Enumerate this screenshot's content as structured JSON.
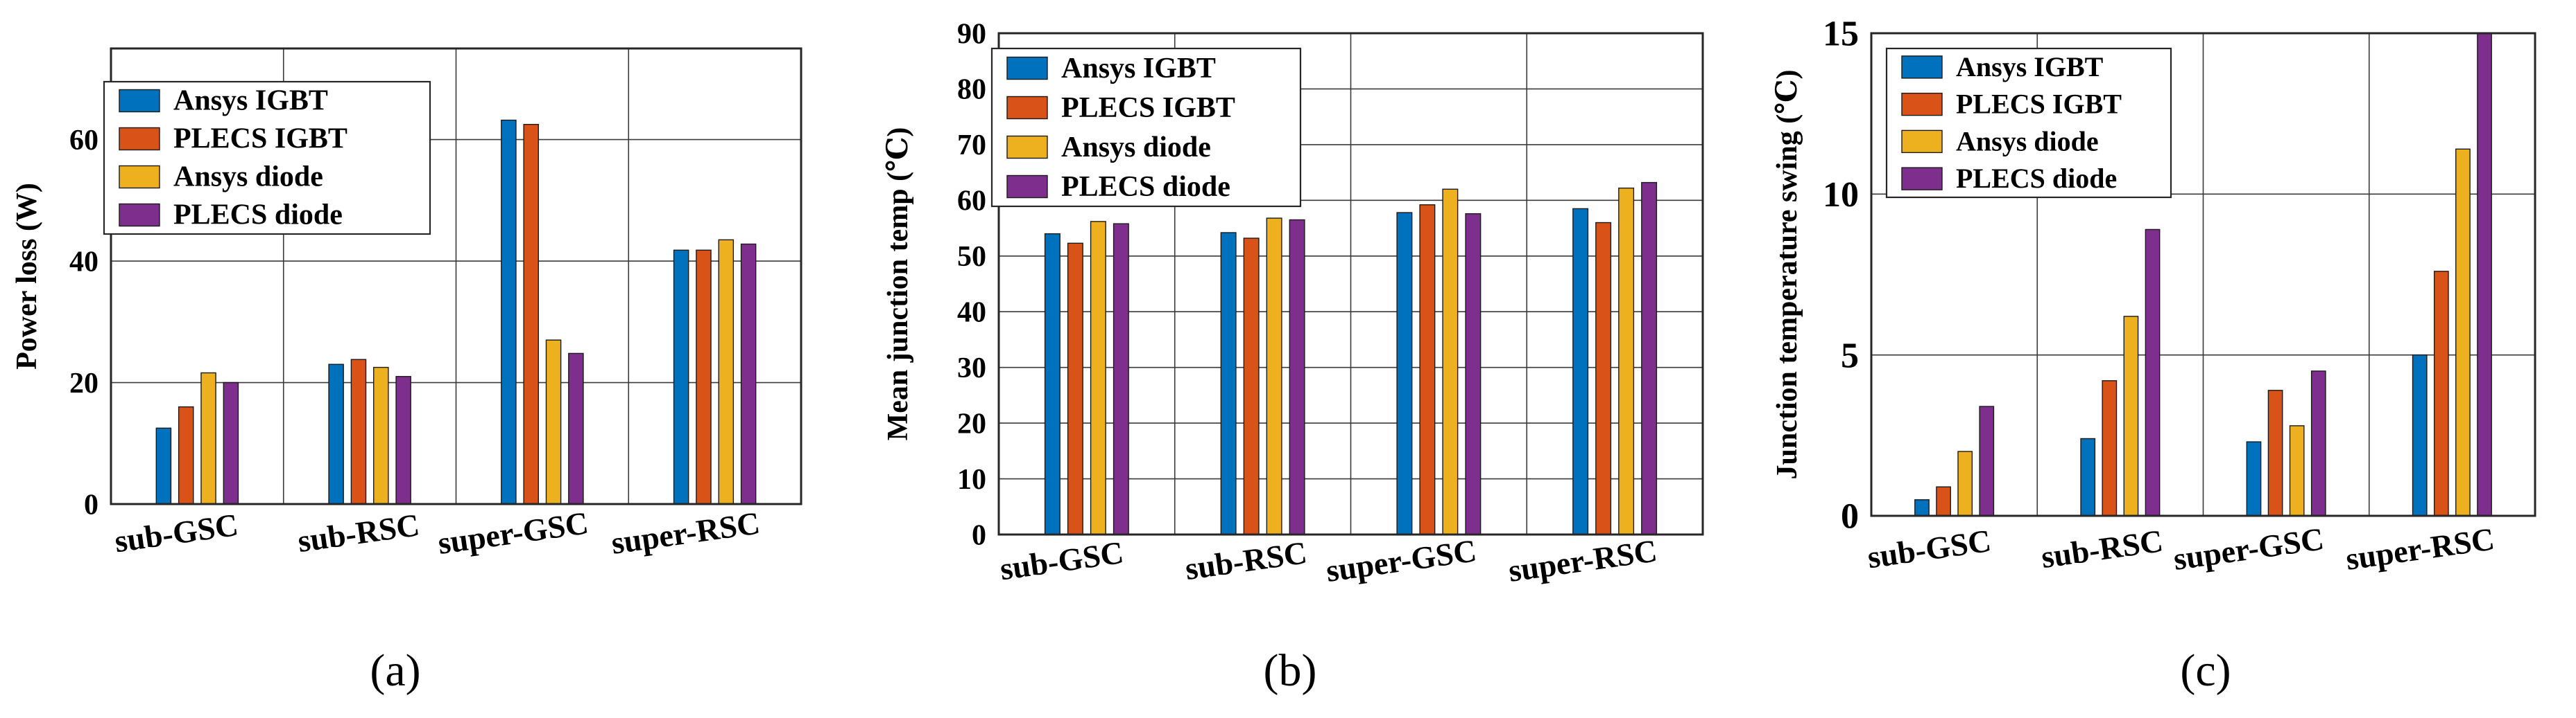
{
  "colors": {
    "series": [
      "#0072BD",
      "#D95319",
      "#EDB120",
      "#7E2F8E"
    ]
  },
  "chart_data": [
    {
      "type": "bar",
      "panel_label": "(a)",
      "title": "",
      "xlabel": "",
      "ylabel": "Power loss (W)",
      "ylim": [
        0,
        75
      ],
      "yticks": [
        0,
        20,
        40,
        60
      ],
      "grid": true,
      "legend_position": "top-left",
      "categories": [
        "sub-GSC",
        "sub-RSC",
        "super-GSC",
        "super-RSC"
      ],
      "series": [
        {
          "name": "Ansys IGBT",
          "values": [
            12.5,
            23,
            63.2,
            41.8
          ]
        },
        {
          "name": "PLECS IGBT",
          "values": [
            16,
            23.8,
            62.5,
            41.8
          ]
        },
        {
          "name": "Ansys diode",
          "values": [
            21.6,
            22.5,
            27,
            43.5
          ]
        },
        {
          "name": "PLECS diode",
          "values": [
            20,
            21,
            24.8,
            42.8
          ]
        }
      ]
    },
    {
      "type": "bar",
      "panel_label": "(b)",
      "title": "",
      "xlabel": "",
      "ylabel": "Mean junction temp (℃)",
      "ylim": [
        0,
        90
      ],
      "yticks": [
        0,
        10,
        20,
        30,
        40,
        50,
        60,
        70,
        80,
        90
      ],
      "grid": true,
      "legend_position": "top-left",
      "categories": [
        "sub-GSC",
        "sub-RSC",
        "super-GSC",
        "super-RSC"
      ],
      "series": [
        {
          "name": "Ansys IGBT",
          "values": [
            54,
            54.2,
            57.8,
            58.5
          ]
        },
        {
          "name": "PLECS IGBT",
          "values": [
            52.3,
            53.2,
            59.2,
            56
          ]
        },
        {
          "name": "Ansys diode",
          "values": [
            56.2,
            56.8,
            62,
            62.2
          ]
        },
        {
          "name": "PLECS diode",
          "values": [
            55.8,
            56.5,
            57.6,
            63.2
          ]
        }
      ]
    },
    {
      "type": "bar",
      "panel_label": "(c)",
      "title": "",
      "xlabel": "",
      "ylabel": "Junction temperature swing (℃)",
      "ylim": [
        0,
        15
      ],
      "yticks": [
        0,
        5,
        10,
        15
      ],
      "grid": true,
      "legend_position": "top-left",
      "categories": [
        "sub-GSC",
        "sub-RSC",
        "super-GSC",
        "super-RSC"
      ],
      "series": [
        {
          "name": "Ansys IGBT",
          "values": [
            0.5,
            2.4,
            2.3,
            5
          ]
        },
        {
          "name": "PLECS IGBT",
          "values": [
            0.9,
            4.2,
            3.9,
            7.6
          ]
        },
        {
          "name": "Ansys diode",
          "values": [
            2,
            6.2,
            2.8,
            11.4
          ]
        },
        {
          "name": "PLECS diode",
          "values": [
            3.4,
            8.9,
            4.5,
            15
          ]
        }
      ]
    }
  ]
}
